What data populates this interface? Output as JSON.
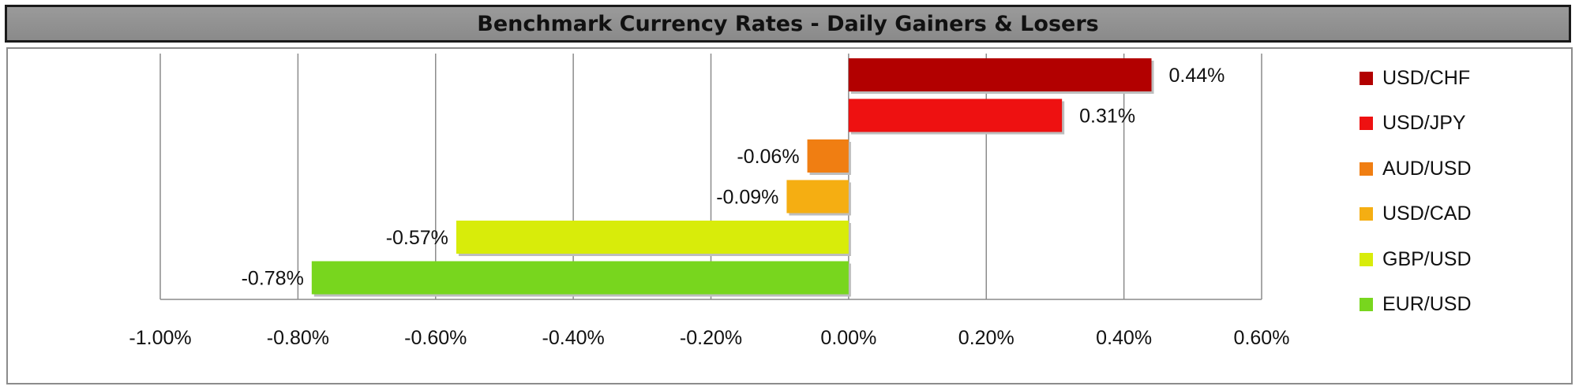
{
  "title": "Benchmark Currency Rates - Daily Gainers & Losers",
  "chart_data": {
    "type": "bar",
    "orientation": "horizontal",
    "title": "Benchmark Currency Rates - Daily Gainers & Losers",
    "xlim": [
      -1.0,
      0.6
    ],
    "x_ticks": [
      -1.0,
      -0.8,
      -0.6,
      -0.4,
      -0.2,
      0.0,
      0.2,
      0.4,
      0.6
    ],
    "x_tick_labels": [
      "-1.00%",
      "-0.80%",
      "-0.60%",
      "-0.40%",
      "-0.20%",
      "0.00%",
      "0.20%",
      "0.40%",
      "0.60%"
    ],
    "grid": "vertical",
    "legend_position": "right",
    "series": [
      {
        "name": "USD/CHF",
        "value": 0.44,
        "label": "0.44%",
        "color": "#b20000"
      },
      {
        "name": "USD/JPY",
        "value": 0.31,
        "label": "0.31%",
        "color": "#ee1111"
      },
      {
        "name": "AUD/USD",
        "value": -0.06,
        "label": "-0.06%",
        "color": "#f07e12"
      },
      {
        "name": "USD/CAD",
        "value": -0.09,
        "label": "-0.09%",
        "color": "#f5ae12"
      },
      {
        "name": "GBP/USD",
        "value": -0.57,
        "label": "-0.57%",
        "color": "#d8ec0a"
      },
      {
        "name": "EUR/USD",
        "value": -0.78,
        "label": "-0.78%",
        "color": "#78d61e"
      }
    ]
  }
}
